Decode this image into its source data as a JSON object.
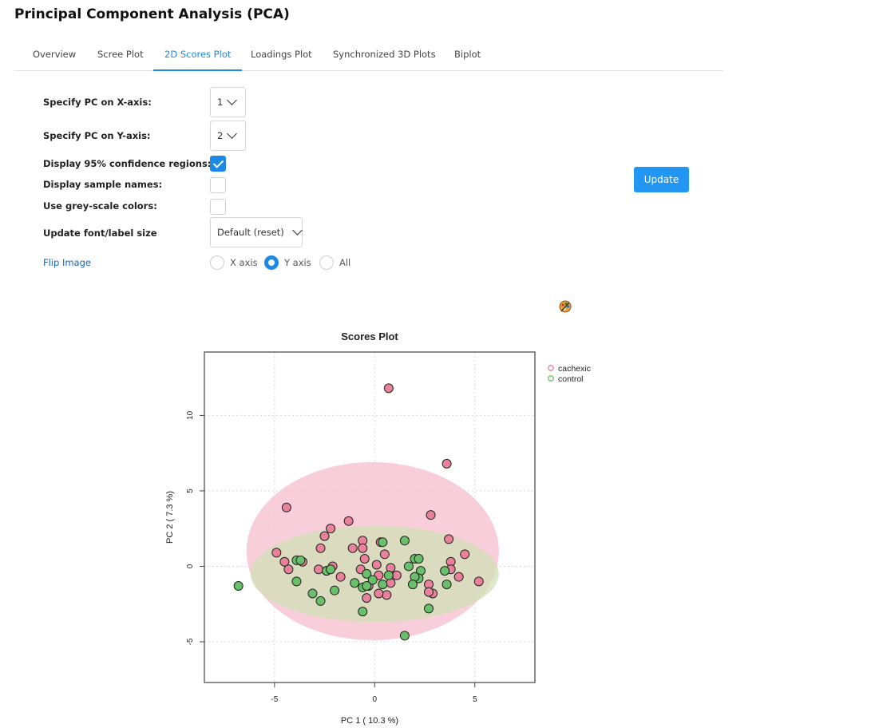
{
  "page": {
    "title": "Principal Component Analysis (PCA)"
  },
  "tabs": [
    {
      "label": "Overview",
      "active": false
    },
    {
      "label": "Scree Plot",
      "active": false
    },
    {
      "label": "2D Scores Plot",
      "active": true
    },
    {
      "label": "Loadings Plot",
      "active": false
    },
    {
      "label": "Synchronized 3D Plots",
      "active": false
    },
    {
      "label": "Biplot",
      "active": false
    }
  ],
  "form": {
    "pcx_label": "Specify PC on X-axis:",
    "pcx_value": "1",
    "pcy_label": "Specify PC on Y-axis:",
    "pcy_value": "2",
    "conf_label": "Display 95% confidence regions:",
    "conf_checked": true,
    "names_label": "Display sample names:",
    "names_checked": false,
    "grey_label": "Use grey-scale colors:",
    "grey_checked": false,
    "font_label": "Update font/label size",
    "font_value": "Default (reset)",
    "flip_label": "Flip Image",
    "flip_options": [
      {
        "label": "X axis",
        "selected": false
      },
      {
        "label": "Y axis",
        "selected": true
      },
      {
        "label": "All",
        "selected": false
      }
    ],
    "update_label": "Update"
  },
  "icons": {
    "palette": "palette-icon",
    "chevron": "chevron-down-icon",
    "check": "check-icon"
  },
  "colors": {
    "accent": "#2196f3",
    "cachexic": "#e8819a",
    "control": "#6abf6a",
    "cachexic_ellipse": "#f7c6d3",
    "control_ellipse": "#d2dfb7"
  },
  "chart_data": {
    "type": "scatter",
    "title": "Scores Plot",
    "xlabel": "PC 1 ( 10.3 %)",
    "ylabel": "PC 2 ( 7.3 %)",
    "xlim": [
      -8.5,
      8
    ],
    "ylim": [
      -7.7,
      14.2
    ],
    "xticks": [
      -5,
      0,
      5
    ],
    "xtick_labels": [
      "-5",
      "0",
      "5"
    ],
    "yticks": [
      -5,
      0,
      5,
      10
    ],
    "ytick_labels": [
      "-5",
      "0",
      "5",
      "10"
    ],
    "grid": true,
    "legend_position": "right",
    "series": [
      {
        "name": "cachexic",
        "color": "#e8819a",
        "ellipse": {
          "cx": -0.1,
          "cy": 1.0,
          "rx": 6.3,
          "ry": 5.9
        },
        "points": [
          [
            0.7,
            11.8
          ],
          [
            3.6,
            6.8
          ],
          [
            -4.4,
            3.9
          ],
          [
            -1.3,
            3.0
          ],
          [
            2.8,
            3.4
          ],
          [
            -2.2,
            2.5
          ],
          [
            -2.5,
            2.0
          ],
          [
            -0.6,
            1.7
          ],
          [
            0.3,
            1.6
          ],
          [
            -1.1,
            1.2
          ],
          [
            -2.7,
            1.2
          ],
          [
            -0.6,
            1.2
          ],
          [
            3.7,
            1.8
          ],
          [
            -4.9,
            0.9
          ],
          [
            -4.5,
            0.3
          ],
          [
            -4.3,
            -0.2
          ],
          [
            -2.4,
            -0.3
          ],
          [
            -2.8,
            -0.2
          ],
          [
            -0.5,
            0.5
          ],
          [
            0.1,
            0.1
          ],
          [
            0.8,
            -0.1
          ],
          [
            0.2,
            -0.6
          ],
          [
            0.8,
            -1.1
          ],
          [
            1.1,
            -0.6
          ],
          [
            -0.3,
            -1.3
          ],
          [
            0.6,
            -1.9
          ],
          [
            -0.4,
            -2.1
          ],
          [
            0.2,
            -1.8
          ],
          [
            2.7,
            -1.2
          ],
          [
            2.9,
            -1.8
          ],
          [
            2.7,
            -1.7
          ],
          [
            3.8,
            0.3
          ],
          [
            3.8,
            -0.2
          ],
          [
            4.2,
            -0.7
          ],
          [
            4.5,
            0.8
          ],
          [
            5.2,
            -1.0
          ],
          [
            -1.7,
            -0.7
          ],
          [
            -3.6,
            0.3
          ],
          [
            0.5,
            0.8
          ],
          [
            -0.7,
            -0.2
          ],
          [
            -2.1,
            0.0
          ]
        ]
      },
      {
        "name": "control",
        "color": "#6abf6a",
        "ellipse": {
          "cx": 0.0,
          "cy": -0.5,
          "rx": 6.2,
          "ry": 3.2
        },
        "points": [
          [
            -6.8,
            -1.3
          ],
          [
            1.5,
            1.7
          ],
          [
            0.4,
            1.6
          ],
          [
            -3.9,
            0.4
          ],
          [
            -3.7,
            0.4
          ],
          [
            2.0,
            0.5
          ],
          [
            2.2,
            0.5
          ],
          [
            1.7,
            0.0
          ],
          [
            2.3,
            -0.3
          ],
          [
            3.5,
            -0.3
          ],
          [
            -2.4,
            -0.3
          ],
          [
            -2.2,
            -0.2
          ],
          [
            -0.4,
            -0.5
          ],
          [
            -0.1,
            -0.9
          ],
          [
            0.4,
            -1.2
          ],
          [
            0.7,
            -0.6
          ],
          [
            2.2,
            -0.8
          ],
          [
            2.0,
            -0.7
          ],
          [
            1.9,
            -1.2
          ],
          [
            3.6,
            -1.2
          ],
          [
            -1.0,
            -1.1
          ],
          [
            -0.6,
            -1.4
          ],
          [
            -0.4,
            -1.3
          ],
          [
            -3.9,
            -1.0
          ],
          [
            -3.1,
            -1.8
          ],
          [
            -2.7,
            -2.3
          ],
          [
            -2.0,
            -1.6
          ],
          [
            -0.6,
            -3.0
          ],
          [
            1.5,
            -4.6
          ],
          [
            2.7,
            -2.8
          ]
        ]
      }
    ]
  }
}
